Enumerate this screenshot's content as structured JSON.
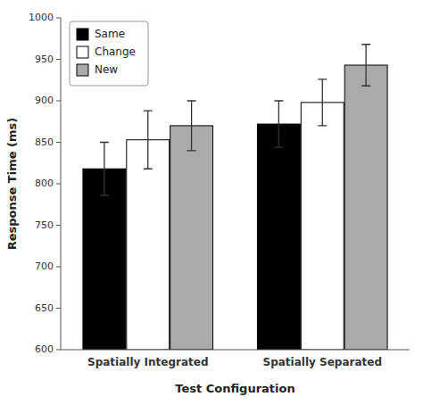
{
  "chart_data": {
    "type": "bar",
    "xlabel": "Test Configuration",
    "ylabel": "Response Time (ms)",
    "categories": [
      "Spatially Integrated",
      "Spatially Separated"
    ],
    "series": [
      {
        "name": "Same",
        "color": "#000000",
        "values": [
          818,
          872
        ],
        "errors": [
          32,
          28
        ]
      },
      {
        "name": "Change",
        "color": "#ffffff",
        "values": [
          853,
          898
        ],
        "errors": [
          35,
          28
        ]
      },
      {
        "name": "New",
        "color": "#aaaaaa",
        "values": [
          870,
          943
        ],
        "errors": [
          30,
          25
        ]
      }
    ],
    "ylim": [
      600,
      1000
    ],
    "yticks": [
      600,
      650,
      700,
      750,
      800,
      850,
      900,
      950,
      1000
    ],
    "legend": "upper left",
    "grid": false
  }
}
